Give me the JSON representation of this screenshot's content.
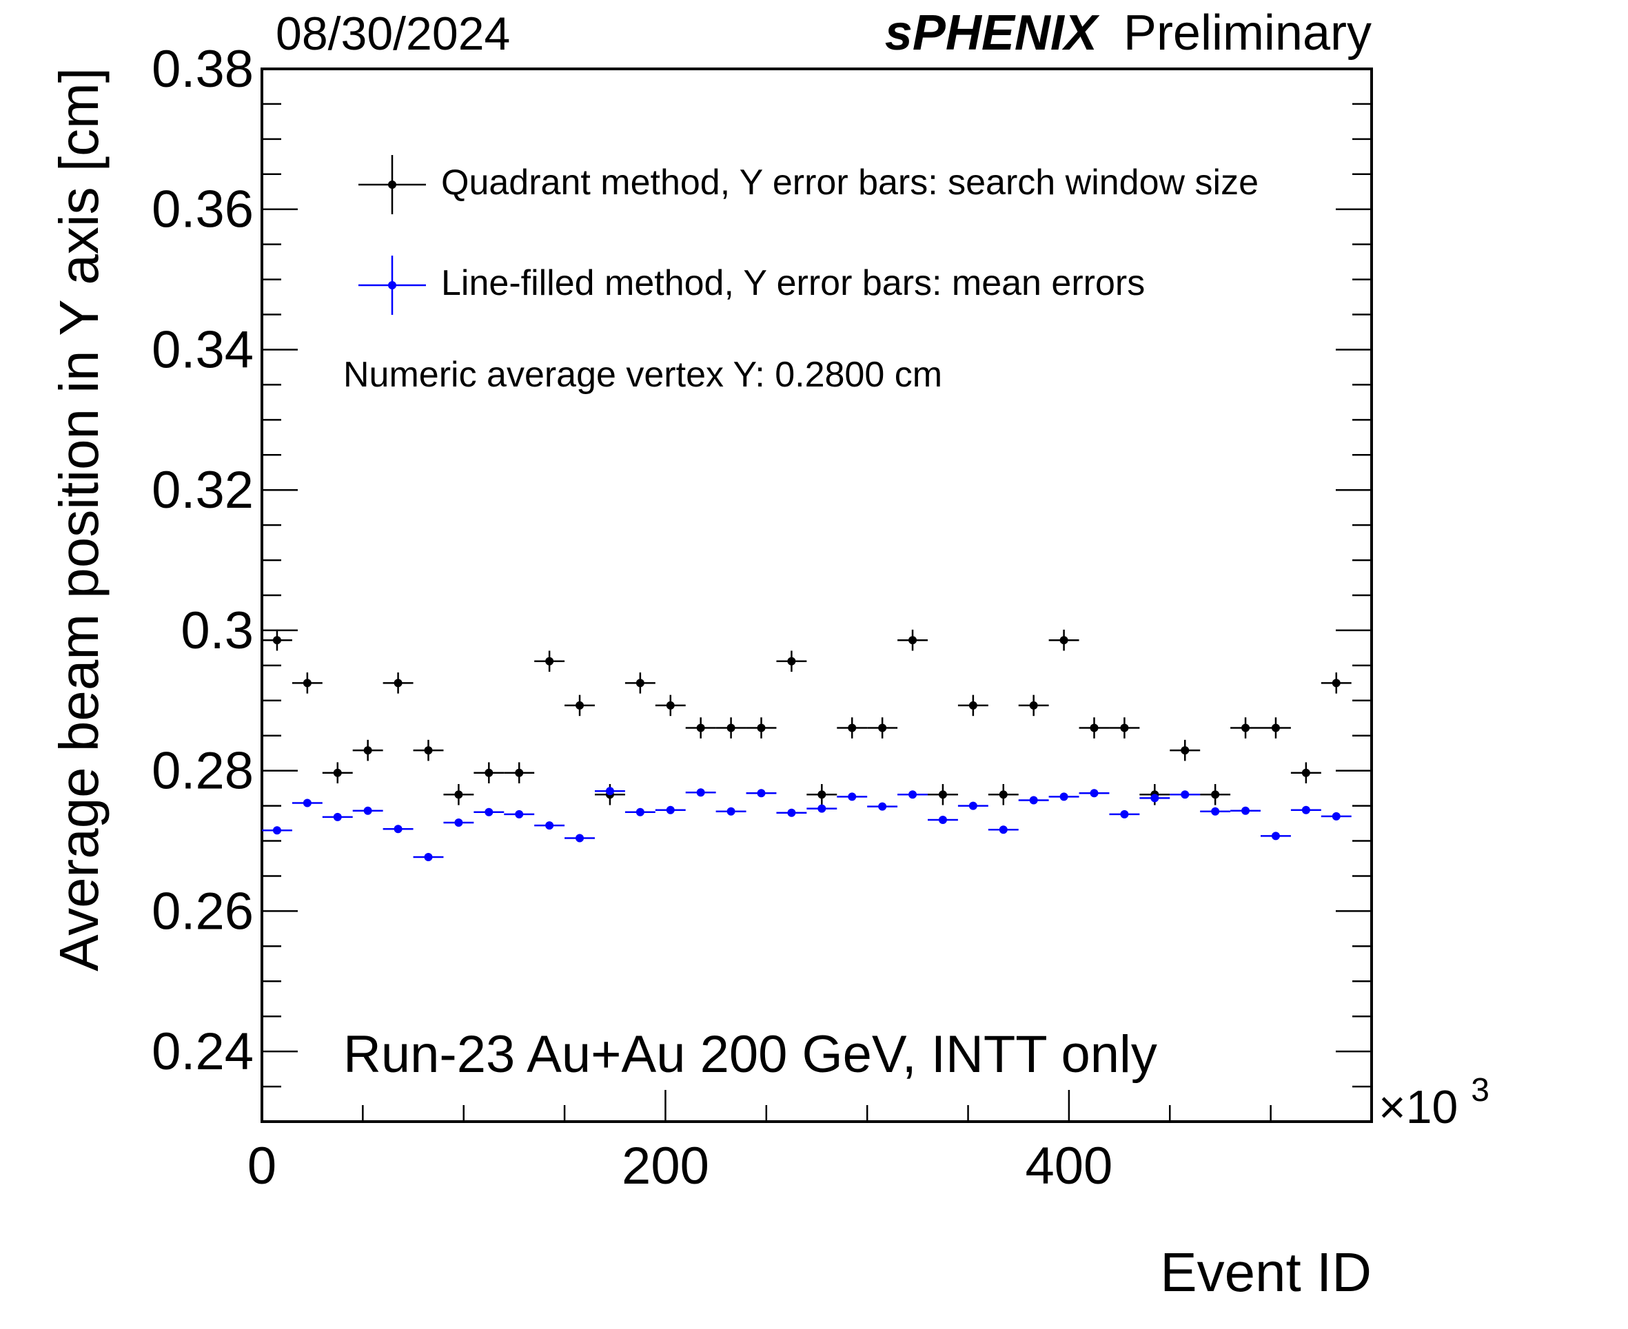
{
  "header": {
    "date": "08/30/2024",
    "experiment": "sPHENIX",
    "status": "Preliminary"
  },
  "chart_data": {
    "type": "scatter",
    "xlabel": "Event ID",
    "ylabel": "Average beam position in Y axis [cm]",
    "x_multiplier": "×10",
    "x_multiplier_exp": "3",
    "xlim": [
      0,
      550000
    ],
    "ylim": [
      0.23,
      0.38
    ],
    "x_ticks": [
      "0",
      "200",
      "400"
    ],
    "x_tick_values": [
      0,
      200000,
      400000
    ],
    "y_ticks": [
      "0.24",
      "0.26",
      "0.28",
      "0.3",
      "0.32",
      "0.34",
      "0.36",
      "0.38"
    ],
    "y_tick_values": [
      0.24,
      0.26,
      0.28,
      0.3,
      0.32,
      0.34,
      0.36,
      0.38
    ],
    "bin_half_width": 7500,
    "x": [
      7500,
      22500,
      37500,
      52500,
      67500,
      82500,
      97500,
      112500,
      127500,
      142500,
      157500,
      172500,
      187500,
      202500,
      217500,
      232500,
      247500,
      262500,
      277500,
      292500,
      307500,
      322500,
      337500,
      352500,
      367500,
      382500,
      397500,
      412500,
      427500,
      442500,
      457500,
      472500,
      487500,
      502500,
      517500,
      532500,
      547500
    ],
    "series": [
      {
        "name": "Quadrant method, Y error bars: search window size",
        "color": "#000000",
        "y_error": 0.0015,
        "values": [
          0.2986,
          0.2925,
          0.2797,
          0.2829,
          0.2925,
          0.2829,
          0.2766,
          0.2797,
          0.2797,
          0.2956,
          0.2893,
          0.2766,
          0.2925,
          0.2893,
          0.2861,
          0.2861,
          0.2861,
          0.2956,
          0.2766,
          0.2861,
          0.2861,
          0.2986,
          0.2766,
          0.2893,
          0.2766,
          0.2893,
          0.2986,
          0.2861,
          0.2861,
          0.2766,
          0.2829,
          0.2766,
          0.2861,
          0.2861,
          0.2797,
          0.2925,
          null
        ]
      },
      {
        "name": "Line-filled method, Y error bars: mean errors",
        "color": "#0000ff",
        "y_error": 0.0003,
        "values": [
          0.2715,
          0.2754,
          0.2734,
          0.2743,
          0.2717,
          0.2677,
          0.2726,
          0.2741,
          0.2738,
          0.2722,
          0.2704,
          0.2771,
          0.2741,
          0.2744,
          0.2769,
          0.2742,
          0.2768,
          0.274,
          0.2746,
          0.2763,
          0.2749,
          0.2766,
          0.273,
          0.275,
          0.2716,
          0.2758,
          0.2763,
          0.2768,
          0.2738,
          0.2761,
          0.2766,
          0.2742,
          0.2743,
          0.2707,
          0.2744,
          0.2735,
          null
        ]
      }
    ],
    "annotations": [
      "Numeric average vertex Y: 0.2800 cm",
      "Run-23 Au+Au 200 GeV, INTT only"
    ],
    "legend_position": "top-left inside plot",
    "grid": false
  }
}
